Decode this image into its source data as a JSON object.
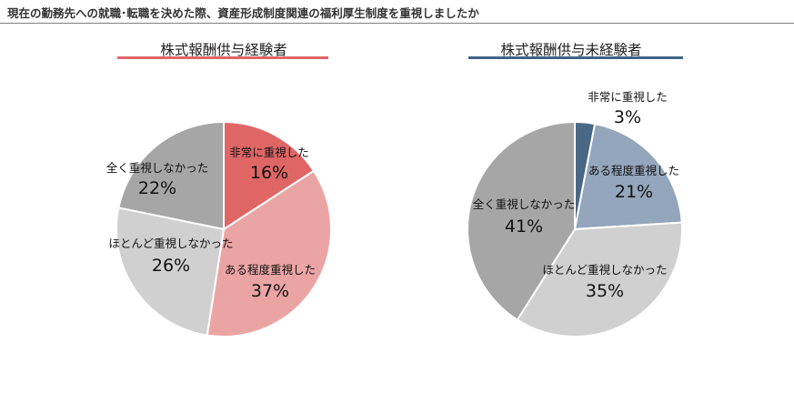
{
  "header": {
    "title": "現在の勤務先への就職･転職を決めた際、資産形成制度関連の福利厚生制度を重視しましたか"
  },
  "colors": {
    "experienced": {
      "accent": "#e06666",
      "slices": [
        "#e06666",
        "#eba4a4",
        "#d0d0d0",
        "#a6a6a6"
      ]
    },
    "inexperienced": {
      "accent": "#3f6486",
      "slices": [
        "#4a6785",
        "#94a6bb",
        "#d0d0d0",
        "#a6a6a6"
      ]
    }
  },
  "chart_data": [
    {
      "type": "pie",
      "title": "株式報酬供与経験者",
      "categories": [
        "非常に重視した",
        "ある程度重視した",
        "ほとんど重視しなかった",
        "全く重視しなかった"
      ],
      "values": [
        16,
        37,
        26,
        22
      ],
      "value_labels": [
        "16%",
        "37%",
        "26%",
        "22%"
      ],
      "start": "12 o'clock",
      "direction": "clockwise"
    },
    {
      "type": "pie",
      "title": "株式報酬供与未経験者",
      "categories": [
        "非常に重視した",
        "ある程度重視した",
        "ほとんど重視しなかった",
        "全く重視しなかった"
      ],
      "values": [
        3,
        21,
        35,
        41
      ],
      "value_labels": [
        "3%",
        "21%",
        "35%",
        "41%"
      ],
      "start": "12 o'clock",
      "direction": "clockwise"
    }
  ]
}
